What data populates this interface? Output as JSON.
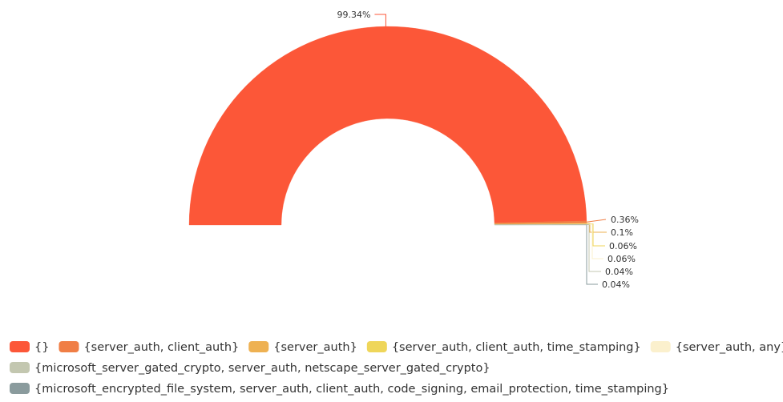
{
  "chart_data": {
    "type": "pie",
    "variant": "half-donut",
    "series": [
      {
        "name": "{}",
        "value": 99.34,
        "label": "99.34%",
        "color": "#fc5738"
      },
      {
        "name": "{server_auth, client_auth}",
        "value": 0.36,
        "label": "0.36%",
        "color": "#f07e45"
      },
      {
        "name": "{server_auth}",
        "value": 0.1,
        "label": "0.1%",
        "color": "#eeb152"
      },
      {
        "name": "{server_auth, client_auth, time_stamping}",
        "value": 0.06,
        "label": "0.06%",
        "color": "#efd65a"
      },
      {
        "name": "{server_auth, any}",
        "value": 0.06,
        "label": "0.06%",
        "color": "#fbf0cd"
      },
      {
        "name": "{microsoft_server_gated_crypto, server_auth, netscape_server_gated_crypto}",
        "value": 0.04,
        "label": "0.04%",
        "color": "#c3c7b0"
      },
      {
        "name": "{microsoft_encrypted_file_system, server_auth, client_auth, code_signing, email_protection, time_stamping}",
        "value": 0.04,
        "label": "0.04%",
        "color": "#8a9b9d"
      }
    ],
    "legend_position": "bottom"
  }
}
